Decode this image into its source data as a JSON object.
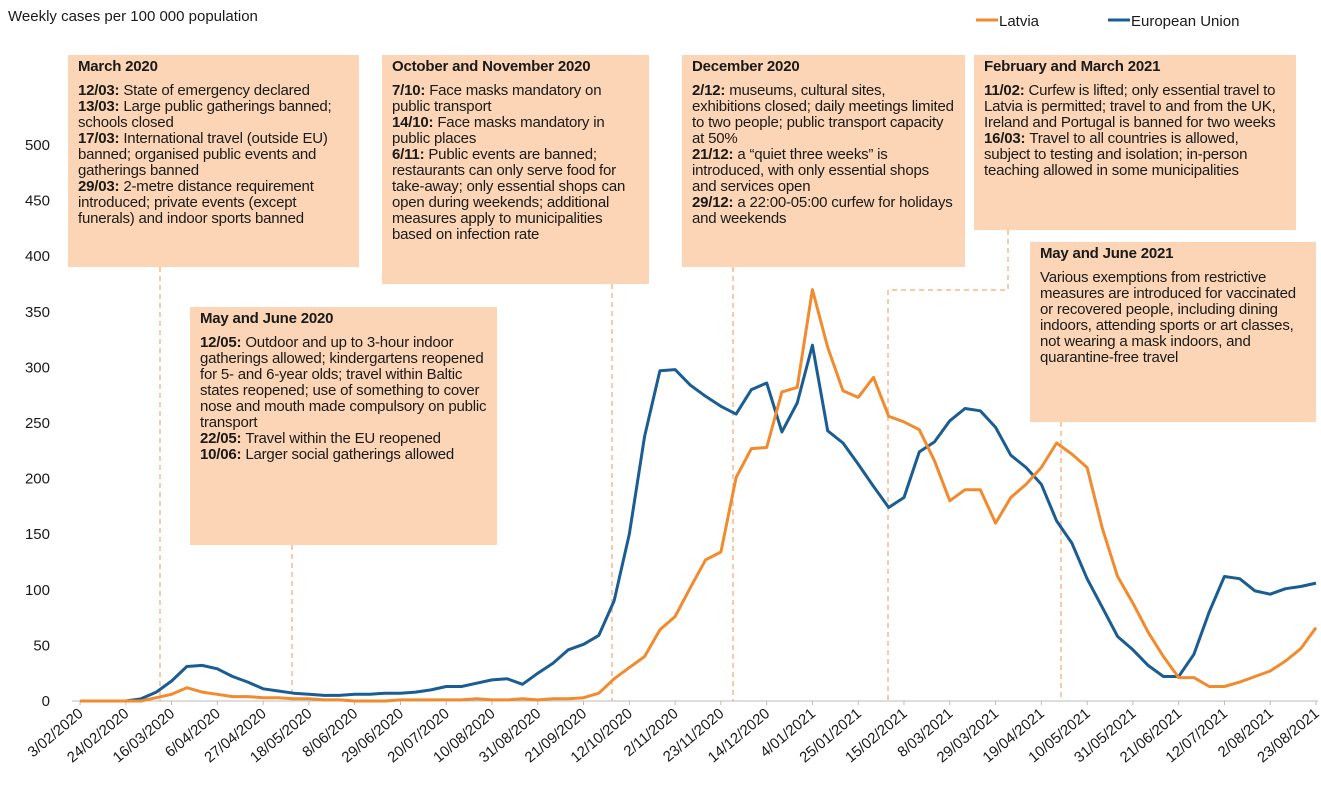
{
  "chart_data": {
    "type": "line",
    "y_label": "Weekly cases per 100 000 population",
    "categories": [
      "3/02/2020",
      null,
      null,
      "24/02/2020",
      null,
      null,
      "16/03/2020",
      null,
      null,
      "6/04/2020",
      null,
      null,
      "27/04/2020",
      null,
      null,
      "18/05/2020",
      null,
      null,
      "8/06/2020",
      null,
      null,
      "29/06/2020",
      null,
      null,
      "20/07/2020",
      null,
      null,
      "10/08/2020",
      null,
      null,
      "31/08/2020",
      null,
      null,
      "21/09/2020",
      null,
      null,
      "12/10/2020",
      null,
      null,
      "2/11/2020",
      null,
      null,
      "23/11/2020",
      null,
      null,
      "14/12/2020",
      null,
      null,
      "4/01/2021",
      null,
      null,
      "25/01/2021",
      null,
      null,
      "15/02/2021",
      null,
      null,
      "8/03/2021",
      null,
      null,
      "29/03/2021",
      null,
      null,
      "19/04/2021",
      null,
      null,
      "10/05/2021",
      null,
      null,
      "31/05/2021",
      null,
      null,
      "21/06/2021",
      null,
      null,
      "12/07/2021",
      null,
      null,
      "2/08/2021",
      null,
      null,
      "23/08/2021"
    ],
    "series": [
      {
        "name": "Latvia",
        "color": "#f28a2e",
        "values": [
          0,
          0,
          0,
          0,
          0,
          3,
          6,
          12,
          8,
          6,
          4,
          4,
          3,
          3,
          2,
          2,
          1,
          1,
          0,
          0,
          0,
          1,
          1,
          1,
          1,
          1,
          2,
          1,
          1,
          2,
          1,
          2,
          2,
          3,
          7,
          20,
          30,
          40,
          64,
          76,
          102,
          127,
          134,
          201,
          227,
          228,
          278,
          282,
          370,
          318,
          279,
          273,
          291,
          256,
          251,
          244,
          216,
          180,
          190,
          190,
          160,
          183,
          195,
          210,
          232,
          222,
          210,
          155,
          112,
          88,
          62,
          40,
          21,
          21,
          13,
          13,
          17,
          22,
          27,
          36,
          47,
          66
        ]
      },
      {
        "name": "European Union",
        "color": "#1a5d92",
        "values": [
          0,
          0,
          0,
          0,
          2,
          8,
          18,
          31,
          32,
          29,
          22,
          17,
          11,
          9,
          7,
          6,
          5,
          5,
          6,
          6,
          7,
          7,
          8,
          10,
          13,
          13,
          16,
          19,
          20,
          15,
          25,
          34,
          46,
          51,
          59,
          90,
          150,
          238,
          297,
          298,
          284,
          274,
          265,
          258,
          280,
          286,
          242,
          268,
          320,
          243,
          232,
          213,
          193,
          174,
          183,
          224,
          233,
          252,
          263,
          261,
          246,
          221,
          210,
          195,
          162,
          142,
          110,
          84,
          58,
          46,
          32,
          22,
          22,
          42,
          80,
          112,
          110,
          99,
          96,
          101,
          103,
          106
        ]
      }
    ],
    "ylim": [
      0,
      550
    ],
    "yticks": [
      0,
      50,
      100,
      150,
      200,
      250,
      300,
      350,
      400,
      450,
      500
    ],
    "grid": false,
    "legend": "top-right",
    "annotations": [
      {
        "title": "March 2020",
        "items": [
          {
            "date": "12/03:",
            "text": "State of emergency declared"
          },
          {
            "date": "13/03:",
            "text": "Large public gatherings banned; schools closed"
          },
          {
            "date": "17/03:",
            "text": "International travel (outside EU) banned; organised public events and gatherings banned"
          },
          {
            "date": "29/03:",
            "text": "2-metre distance requirement introduced; private events (except funerals) and indoor sports banned"
          }
        ]
      },
      {
        "title": "May and June 2020",
        "items": [
          {
            "date": "12/05:",
            "text": "Outdoor and up to 3-hour indoor gatherings allowed; kindergartens reopened for 5- and 6-year olds; travel within Baltic states reopened; use of something to cover nose and mouth made compulsory on public transport"
          },
          {
            "date": "22/05:",
            "text": "Travel within the EU reopened"
          },
          {
            "date": "10/06:",
            "text": "Larger social gatherings allowed"
          }
        ]
      },
      {
        "title": "October and November 2020",
        "items": [
          {
            "date": "7/10:",
            "text": "Face masks mandatory on public transport"
          },
          {
            "date": "14/10:",
            "text": "Face masks mandatory in public places"
          },
          {
            "date": "6/11:",
            "text": "Public events are banned; restaurants can only serve food for take-away; only essential shops can open during weekends; additional measures apply to municipalities based on infection rate"
          }
        ]
      },
      {
        "title": "December 2020",
        "items": [
          {
            "date": "2/12:",
            "text": "museums, cultural sites, exhibitions closed; daily meetings limited to two people; public transport capacity at 50%"
          },
          {
            "date": "21/12:",
            "text": "a “quiet three weeks” is introduced, with only essential shops and services open"
          },
          {
            "date": "29/12:",
            "text": "a 22:00-05:00 curfew for holidays and weekends"
          }
        ]
      },
      {
        "title": "February and March 2021",
        "items": [
          {
            "date": "11/02:",
            "text": "Curfew is lifted; only essential travel to Latvia is permitted; travel to and from the UK, Ireland and Portugal is banned for two weeks"
          },
          {
            "date": "16/03:",
            "text": "Travel to all countries is allowed, subject to testing and isolation; in-person teaching allowed in some municipalities"
          }
        ]
      },
      {
        "title": "May and June 2021",
        "text": "Various exemptions from restrictive measures are introduced for vaccinated or recovered people, including dining indoors, attending sports or art classes, not wearing a mask indoors, and quarantine-free travel"
      }
    ]
  }
}
